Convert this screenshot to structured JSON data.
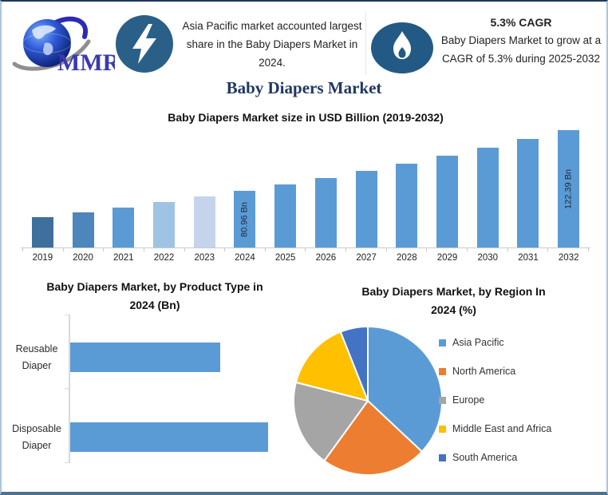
{
  "page_title": "Baby Diapers Market",
  "header": {
    "logo_text": "MMR",
    "highlight_share": {
      "icon": "lightning-bolt",
      "text": "Asia Pacific market accounted largest share in the Baby Diapers Market in 2024."
    },
    "highlight_cagr": {
      "icon": "flame",
      "title": "5.3% CAGR",
      "text": "Baby Diapers Market to grow at a CAGR of 5.3% during 2025-2032"
    }
  },
  "colors": {
    "accent_bar": "#5b9bd5",
    "title_navy": "#1f3864",
    "icon_circle_blue": "#2a5f88"
  },
  "chart_data": [
    {
      "type": "bar",
      "title": "Baby Diapers Market size in USD Billion (2019-2032)",
      "categories": [
        "2019",
        "2020",
        "2021",
        "2022",
        "2023",
        "2024",
        "2025",
        "2026",
        "2027",
        "2028",
        "2029",
        "2030",
        "2031",
        "2032"
      ],
      "values": [
        62.5,
        65.9,
        69.3,
        73.0,
        76.9,
        80.96,
        85.25,
        89.77,
        94.53,
        99.54,
        104.81,
        110.37,
        116.22,
        122.39
      ],
      "unit": "USD Bn",
      "data_labels": {
        "2024": "80.96 Bn",
        "2032": "122.39 Bn"
      },
      "colors": [
        "#3f6f9c",
        "#4c86bb",
        "#5b9bd5",
        "#9ec3e5",
        "#c6d4eb",
        "#5b9bd5",
        "#5b9bd5",
        "#5b9bd5",
        "#5b9bd5",
        "#5b9bd5",
        "#5b9bd5",
        "#5b9bd5",
        "#5b9bd5",
        "#5b9bd5"
      ],
      "ylim": [
        42,
        124
      ],
      "grid": false,
      "legend": false
    },
    {
      "type": "bar",
      "orientation": "horizontal",
      "title": "Baby Diapers Market, by Product Type in 2024 (Bn)",
      "categories": [
        "Reusable Diaper",
        "Disposable Diaper"
      ],
      "values": [
        34.9,
        46.1
      ],
      "xlim": [
        0,
        52
      ],
      "bar_color": "#5b9bd5",
      "grid": false,
      "legend": false
    },
    {
      "type": "pie",
      "title": "Baby Diapers Market, by Region In 2024 (%)",
      "labels": [
        "Asia Pacific",
        "North America",
        "Europe",
        "Middle East and Africa",
        "South America"
      ],
      "values": [
        37,
        23,
        19,
        15,
        6
      ],
      "colors": [
        "#5b9bd5",
        "#ed7d31",
        "#a5a5a5",
        "#ffc000",
        "#4472c4"
      ],
      "legend_position": "right",
      "start_angle_deg": 0
    }
  ]
}
